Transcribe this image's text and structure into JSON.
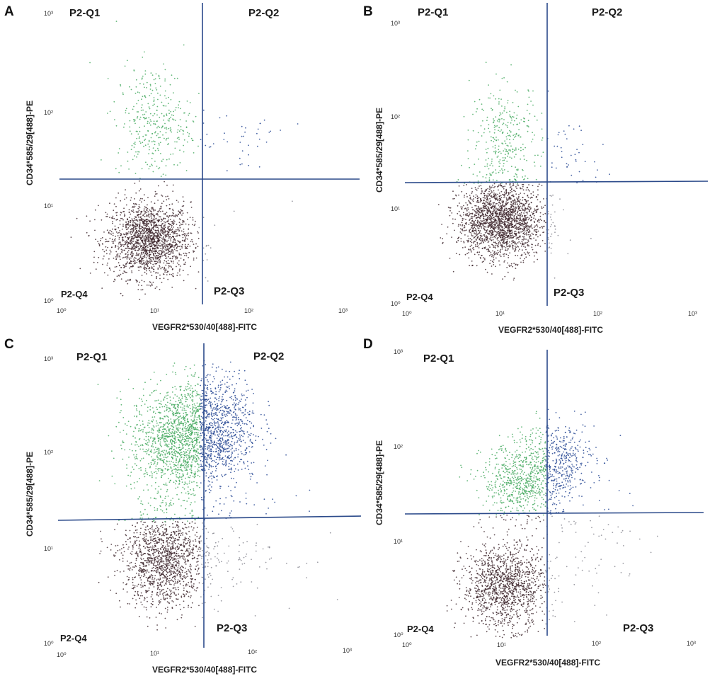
{
  "figure": {
    "colors": {
      "background": "#ffffff",
      "gate_line": "#2b4a8a",
      "Q4_event": "#3a2228",
      "Q1_event": "#3fa65a",
      "Q2_event": "#1b3f8f",
      "Q3_event": "#4a4a5a"
    }
  },
  "chart_data": [
    {
      "panel": "A",
      "type": "scatter",
      "xlabel": "VEGFR2*530/40[488]-FITC",
      "ylabel": "CD34*585/29[488]-PE",
      "x_scale": "log",
      "y_scale": "log",
      "xlim": [
        1,
        1000
      ],
      "ylim": [
        1,
        1000
      ],
      "x_ticks": [
        "10⁰",
        "10¹",
        "10²",
        "10³"
      ],
      "y_ticks": [
        "10⁰",
        "10¹",
        "10²",
        "10³"
      ],
      "gate": {
        "x": 30,
        "y": 20
      },
      "quadrants": {
        "Q1": "P2-Q1",
        "Q2": "P2-Q2",
        "Q3": "P2-Q3",
        "Q4": "P2-Q4"
      },
      "populations": [
        {
          "name": "Q4 cluster",
          "quadrant": "Q4",
          "center_log": [
            0.95,
            0.65
          ],
          "spread_log": [
            0.22,
            0.2
          ],
          "count": 1800
        },
        {
          "name": "Q1 cluster",
          "quadrant": "Q1",
          "center_log": [
            1.0,
            1.9
          ],
          "spread_log": [
            0.2,
            0.3
          ],
          "count": 350
        },
        {
          "name": "Q2 scatter",
          "quadrant": "Q2",
          "center_log": [
            1.9,
            1.7
          ],
          "spread_log": [
            0.25,
            0.25
          ],
          "count": 40
        }
      ]
    },
    {
      "panel": "B",
      "type": "scatter",
      "xlabel": "VEGFR2*530/40[488]-FITC",
      "ylabel": "CD34*585/29[488]-PE",
      "x_scale": "log",
      "y_scale": "log",
      "xlim": [
        1,
        1000
      ],
      "ylim": [
        1,
        1000
      ],
      "x_ticks": [
        "10⁰",
        "10¹",
        "10²",
        "10³"
      ],
      "y_ticks": [
        "10⁰",
        "10¹",
        "10²",
        "10³"
      ],
      "gate": {
        "x": 30,
        "y": 20
      },
      "quadrants": {
        "Q1": "P2-Q1",
        "Q2": "P2-Q2",
        "Q3": "P2-Q3",
        "Q4": "P2-Q4"
      },
      "populations": [
        {
          "name": "Q4 cluster",
          "quadrant": "Q4",
          "center_log": [
            1.0,
            0.9
          ],
          "spread_log": [
            0.22,
            0.2
          ],
          "count": 2000
        },
        {
          "name": "Q1 cluster",
          "quadrant": "Q1",
          "center_log": [
            1.05,
            1.8
          ],
          "spread_log": [
            0.18,
            0.28
          ],
          "count": 300
        },
        {
          "name": "Q2 scatter",
          "quadrant": "Q2",
          "center_log": [
            1.7,
            1.6
          ],
          "spread_log": [
            0.2,
            0.2
          ],
          "count": 50
        }
      ]
    },
    {
      "panel": "C",
      "type": "scatter",
      "xlabel": "VEGFR2*530/40[488]-FITC",
      "ylabel": "CD34*585/29[488]-PE",
      "x_scale": "log",
      "y_scale": "log",
      "xlim": [
        1,
        1000
      ],
      "ylim": [
        1,
        1000
      ],
      "x_ticks": [
        "10⁰",
        "10¹",
        "10²",
        "10³"
      ],
      "y_ticks": [
        "10⁰",
        "10¹",
        "10²",
        "10³"
      ],
      "gate": {
        "x": 30,
        "y": 20
      },
      "quadrants": {
        "Q1": "P2-Q1",
        "Q2": "P2-Q2",
        "Q3": "P2-Q3",
        "Q4": "P2-Q4"
      },
      "populations": [
        {
          "name": "Q4 cluster",
          "quadrant": "Q4",
          "center_log": [
            1.1,
            0.9
          ],
          "spread_log": [
            0.22,
            0.25
          ],
          "count": 1400
        },
        {
          "name": "Q1 cluster",
          "quadrant": "Q1",
          "center_log": [
            1.25,
            2.15
          ],
          "spread_log": [
            0.25,
            0.28
          ],
          "count": 1400
        },
        {
          "name": "Q2 cluster",
          "quadrant": "Q2",
          "center_log": [
            1.65,
            2.3
          ],
          "spread_log": [
            0.22,
            0.3
          ],
          "count": 900
        },
        {
          "name": "Q3 scatter",
          "quadrant": "Q3",
          "center_log": [
            1.8,
            1.0
          ],
          "spread_log": [
            0.35,
            0.3
          ],
          "count": 120
        }
      ]
    },
    {
      "panel": "D",
      "type": "scatter",
      "xlabel": "VEGFR2*530/40[488]-FITC",
      "ylabel": "CD34*585/29[488]-PE",
      "x_scale": "log",
      "y_scale": "log",
      "xlim": [
        1,
        1000
      ],
      "ylim": [
        1,
        1000
      ],
      "x_ticks": [
        "10⁰",
        "10¹",
        "10²",
        "10³"
      ],
      "y_ticks": [
        "10⁰",
        "10¹",
        "10²",
        "10³"
      ],
      "gate": {
        "x": 30,
        "y": 20
      },
      "quadrants": {
        "Q1": "P2-Q1",
        "Q2": "",
        "Q3": "P2-Q3",
        "Q4": "P2-Q4"
      },
      "populations": [
        {
          "name": "Q4 cluster",
          "quadrant": "Q4",
          "center_log": [
            1.05,
            0.55
          ],
          "spread_log": [
            0.22,
            0.22
          ],
          "count": 1300
        },
        {
          "name": "Q1 cluster",
          "quadrant": "Q1",
          "center_log": [
            1.25,
            1.65
          ],
          "spread_log": [
            0.22,
            0.2
          ],
          "count": 700
        },
        {
          "name": "Q2 cluster",
          "quadrant": "Q2",
          "center_log": [
            1.6,
            1.9
          ],
          "spread_log": [
            0.2,
            0.2
          ],
          "count": 400
        },
        {
          "name": "Q3 scatter",
          "quadrant": "Q3",
          "center_log": [
            1.9,
            1.0
          ],
          "spread_log": [
            0.35,
            0.3
          ],
          "count": 80
        }
      ]
    }
  ],
  "panels": [
    {
      "letter": "A",
      "q1": "P2-Q1",
      "q2": "P2-Q2",
      "q3": "P2-Q3",
      "q4": "P2-Q4",
      "xlabel": "VEGFR2*530/40[488]-FITC",
      "ylabel": "CD34*585/29[488]-PE",
      "t0": "10⁰",
      "t1": "10¹",
      "t2": "10²",
      "t3": "10³"
    },
    {
      "letter": "B",
      "q1": "P2-Q1",
      "q2": "P2-Q2",
      "q3": "P2-Q3",
      "q4": "P2-Q4",
      "xlabel": "VEGFR2*530/40[488]-FITC",
      "ylabel": "CD34*585/29[488]-PE",
      "t0": "10⁰",
      "t1": "10¹",
      "t2": "10²",
      "t3": "10³"
    },
    {
      "letter": "C",
      "q1": "P2-Q1",
      "q2": "P2-Q2",
      "q3": "P2-Q3",
      "q4": "P2-Q4",
      "xlabel": "VEGFR2*530/40[488]-FITC",
      "ylabel": "CD34*585/29[488]-PE",
      "t0": "10⁰",
      "t1": "10¹",
      "t2": "10²",
      "t3": "10³"
    },
    {
      "letter": "D",
      "q1": "P2-Q1",
      "q2": "",
      "q3": "P2-Q3",
      "q4": "P2-Q4",
      "xlabel": "VEGFR2*530/40[488]-FITC",
      "ylabel": "CD34*585/29[488]-PE",
      "t0": "10⁰",
      "t1": "10¹",
      "t2": "10²",
      "t3": "10³"
    }
  ]
}
